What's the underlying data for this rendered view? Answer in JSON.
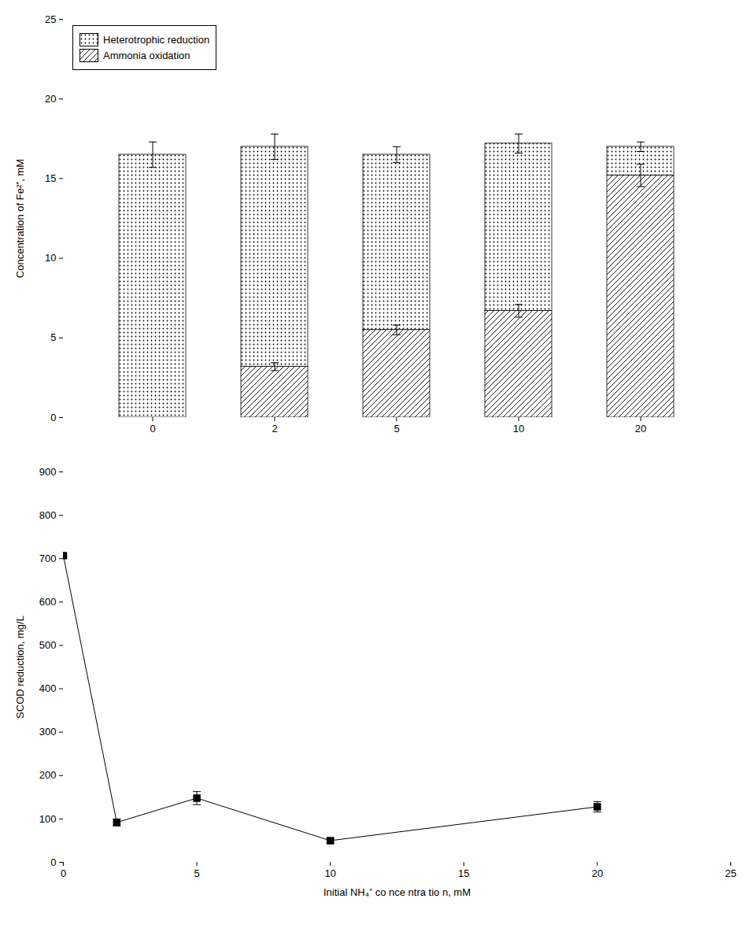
{
  "chart_data": [
    {
      "type": "bar",
      "stacked": true,
      "categories": [
        "0",
        "2",
        "5",
        "10",
        "20"
      ],
      "series": [
        {
          "name": "Heterotrophic reduction",
          "values": [
            16.5,
            13.8,
            11.0,
            10.5,
            1.8
          ],
          "errors": [
            0.8,
            0.8,
            0.5,
            0.6,
            0.3
          ]
        },
        {
          "name": "Ammonia oxidation",
          "values": [
            0.0,
            3.2,
            5.5,
            6.7,
            15.2
          ],
          "errors": [
            0.0,
            0.25,
            0.3,
            0.4,
            0.7
          ]
        }
      ],
      "ylabel": "Concentration of Fe²⁺, mM",
      "ylim": [
        0,
        25
      ],
      "yticks": [
        0,
        5,
        10,
        15,
        20,
        25
      ],
      "color": "#000000",
      "legend": "upper left",
      "grid": false
    },
    {
      "type": "line",
      "x": [
        0,
        2,
        5,
        10,
        20
      ],
      "values": [
        707,
        92,
        148,
        50,
        128
      ],
      "errors": [
        0,
        8,
        15,
        5,
        12
      ],
      "xlabel": "Initial NH₄⁺ co nce ntra tio n, mM",
      "ylabel": "SCOD reduction, mg/L",
      "xlim": [
        0,
        25
      ],
      "xticks": [
        0,
        5,
        10,
        15,
        20,
        25
      ],
      "ylim": [
        0,
        900
      ],
      "yticks": [
        0,
        100,
        200,
        300,
        400,
        500,
        600,
        700,
        800,
        900
      ],
      "color": "#000000",
      "marker": "square",
      "line_style": "solid",
      "grid": false
    }
  ]
}
